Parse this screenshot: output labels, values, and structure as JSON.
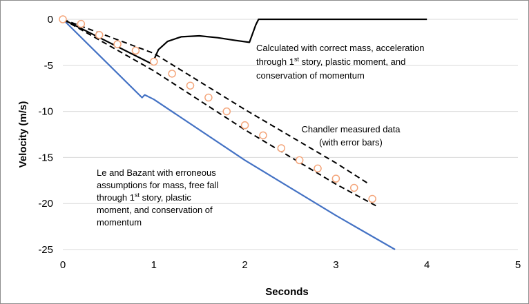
{
  "chart_data": {
    "type": "line",
    "xlabel": "Seconds",
    "ylabel": "Velocity (m/s)",
    "xlim": [
      0,
      5
    ],
    "ylim": [
      -25,
      0
    ],
    "x_ticks": [
      "0",
      "1",
      "2",
      "3",
      "4",
      "5"
    ],
    "y_ticks": [
      "0",
      "-5",
      "-10",
      "-15",
      "-20",
      "-25"
    ],
    "grid": "horizontal",
    "series": [
      {
        "color": "#000000",
        "style": "solid",
        "x": [
          0,
          0.97,
          1.0,
          1.05,
          1.15,
          1.3,
          1.5,
          1.7,
          1.9,
          2.05,
          2.12,
          2.15,
          2.3,
          3.0,
          4.0
        ],
        "y": [
          0,
          -4.8,
          -4.4,
          -3.3,
          -2.4,
          -1.9,
          -1.8,
          -2.0,
          -2.3,
          -2.5,
          -0.6,
          0,
          0,
          0,
          0
        ]
      },
      {
        "color": "#4472c4",
        "style": "solid",
        "x": [
          0,
          0.87,
          0.9,
          1.0,
          2.0,
          3.0,
          3.65
        ],
        "y": [
          0,
          -8.5,
          -8.2,
          -8.7,
          -15.3,
          -21.3,
          -25
        ]
      },
      {
        "color": "#000000",
        "style": "dashed",
        "x": [
          0,
          1.0,
          2.0,
          3.0,
          3.35
        ],
        "y": [
          0,
          -3.7,
          -9.8,
          -15.6,
          -17.8
        ]
      },
      {
        "color": "#000000",
        "style": "dashed",
        "x": [
          0,
          1.0,
          2.0,
          3.0,
          3.45
        ],
        "y": [
          0,
          -5.6,
          -12.0,
          -17.9,
          -20.3
        ]
      }
    ],
    "markers": {
      "color": "#f4a57a",
      "shape": "open-circle",
      "x": [
        0,
        0.2,
        0.4,
        0.6,
        0.8,
        1.0,
        1.2,
        1.4,
        1.6,
        1.8,
        2.0,
        2.2,
        2.4,
        2.6,
        2.8,
        3.0,
        3.2,
        3.4
      ],
      "y": [
        0,
        -0.5,
        -1.7,
        -2.7,
        -3.4,
        -4.6,
        -5.9,
        -7.2,
        -8.5,
        -10.0,
        -11.5,
        -12.6,
        -14.0,
        -15.3,
        -16.2,
        -17.3,
        -18.3,
        -19.5
      ]
    },
    "annotations": [
      {
        "id": "calc",
        "lines": [
          [
            "Calculated with correct mass, acceleration"
          ],
          [
            " through 1",
            "st",
            " story, plastic moment, and"
          ],
          [
            "conservation of momentum"
          ]
        ]
      },
      {
        "id": "chandler",
        "lines": [
          [
            "Chandler measured data"
          ],
          [
            "(with error bars)"
          ]
        ]
      },
      {
        "id": "lebazant",
        "lines": [
          [
            "Le and Bazant with erroneous"
          ],
          [
            "assumptions for mass, free fall"
          ],
          [
            "through 1",
            "st",
            " story, plastic"
          ],
          [
            "moment, and conservation of"
          ],
          [
            "momentum"
          ]
        ]
      }
    ]
  }
}
